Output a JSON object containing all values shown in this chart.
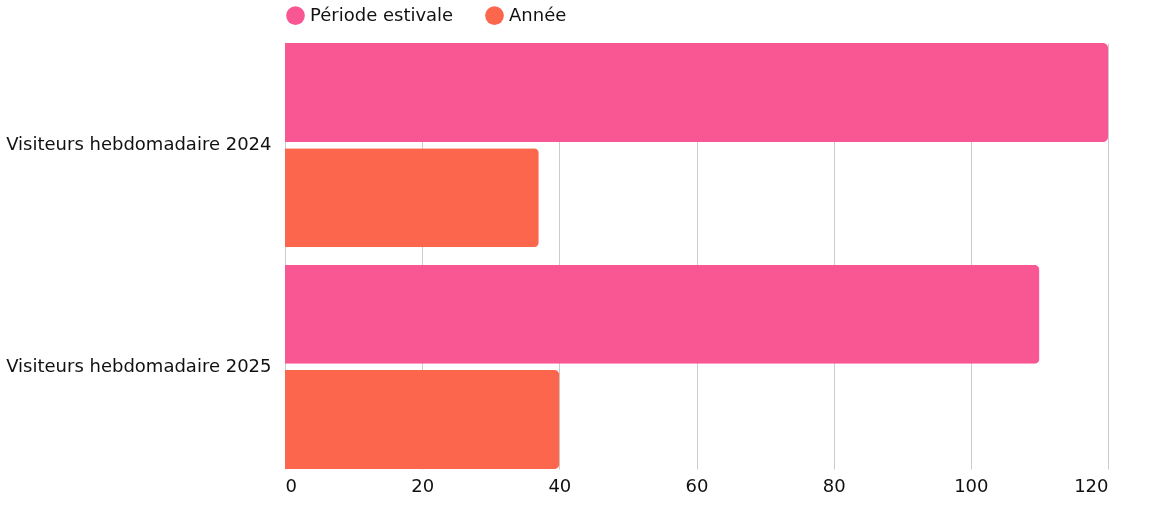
{
  "chart_data": {
    "type": "bar",
    "orientation": "horizontal",
    "categories": [
      "Visiteurs hebdomadaire 2024",
      "Visiteurs hebdomadaire 2025"
    ],
    "series": [
      {
        "name": "Période estivale",
        "color": "#f95694",
        "values": [
          120,
          110
        ]
      },
      {
        "name": "Année",
        "color": "#fb664d",
        "values": [
          37,
          40
        ]
      }
    ],
    "xlim": [
      0,
      120
    ],
    "xticks": [
      0,
      20,
      40,
      60,
      80,
      100,
      120
    ],
    "grid": "x",
    "legend": "top"
  }
}
